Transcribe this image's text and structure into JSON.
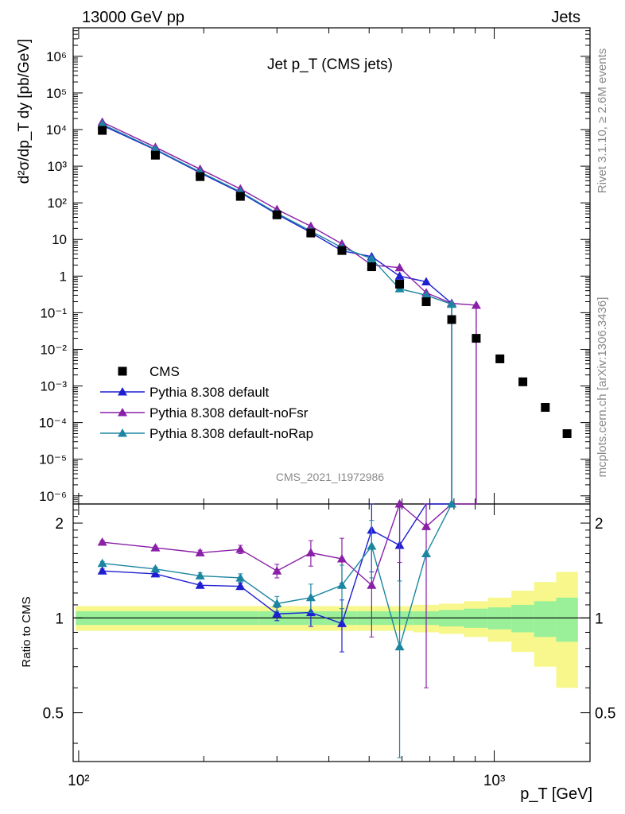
{
  "header": {
    "left": "13000 GeV pp",
    "right": "Jets",
    "side_top": "Rivet 3.1.10, ≥ 2.6M events",
    "side_bottom": "mcplots.cern.ch [arXiv:1306.3436]"
  },
  "chart_data": {
    "type": "scatter",
    "title": "Jet p_T (CMS jets)",
    "watermark": "CMS_2021_I1972986",
    "xlabel": "p_T [GeV]",
    "ylabel_top": "d²σ/dp_T dy [pb/GeV]",
    "ylabel_bottom": "Ratio to CMS",
    "x_scale": "log",
    "xlim": [
      97,
      1700
    ],
    "ylim_top": [
      6e-07,
      6000000.0
    ],
    "ylim_bottom": [
      0.35,
      2.3
    ],
    "x_ticks": [
      "10²",
      "10³"
    ],
    "legend_position": "bottom-left",
    "colors": {
      "data": "#000000",
      "default": "#1f1fd2",
      "noFsr": "#8a1fa8",
      "noRap": "#1a86a0",
      "band_inner": "#99f099",
      "band_outer": "#f7f78c"
    },
    "data": {
      "name": "CMS",
      "x": [
        114,
        153,
        196,
        245,
        300,
        362,
        430,
        507,
        592,
        686,
        790,
        905,
        1032,
        1172,
        1327,
        1497
      ],
      "y": [
        9500,
        2000,
        520,
        150,
        47,
        15,
        5.0,
        1.8,
        0.6,
        0.2,
        0.065,
        0.02,
        0.0055,
        0.0013,
        0.00026,
        5e-05
      ],
      "rel_err_inner": [
        0.05,
        0.05,
        0.05,
        0.05,
        0.05,
        0.05,
        0.05,
        0.05,
        0.05,
        0.05,
        0.06,
        0.07,
        0.08,
        0.1,
        0.13,
        0.16
      ],
      "rel_err_outer": [
        0.09,
        0.09,
        0.09,
        0.09,
        0.09,
        0.09,
        0.09,
        0.09,
        0.09,
        0.1,
        0.11,
        0.13,
        0.16,
        0.22,
        0.3,
        0.4
      ]
    },
    "series": [
      {
        "name": "Pythia 8.308 default",
        "x": [
          114,
          153,
          196,
          245,
          300,
          362,
          430,
          507,
          592,
          686,
          790
        ],
        "y": [
          13000,
          2800,
          660,
          190,
          49,
          15.5,
          4.9,
          3.4,
          1.0,
          0.7,
          0.18
        ],
        "ratio": [
          1.41,
          1.38,
          1.27,
          1.26,
          1.03,
          1.04,
          0.96,
          1.9,
          1.7,
          3.0,
          3.0
        ],
        "ratio_err": [
          0.02,
          0.02,
          0.02,
          0.03,
          0.05,
          0.1,
          0.18,
          0.5,
          0.7,
          null,
          null
        ]
      },
      {
        "name": "Pythia 8.308 default-noFsr",
        "x": [
          114,
          153,
          196,
          245,
          300,
          362,
          430,
          507,
          592,
          686,
          790,
          905
        ],
        "y": [
          16000,
          3300,
          830,
          240,
          66,
          23,
          7.6,
          2.0,
          1.7,
          0.35,
          0.18,
          0.16
        ],
        "ratio": [
          1.74,
          1.67,
          1.61,
          1.65,
          1.41,
          1.61,
          1.54,
          1.27,
          2.3,
          1.95,
          2.6,
          3.0
        ],
        "ratio_err": [
          0.02,
          0.02,
          0.03,
          0.05,
          0.07,
          0.15,
          0.25,
          0.4,
          0.8,
          1.35,
          null,
          null
        ]
      },
      {
        "name": "Pythia 8.308 default-noRap",
        "x": [
          114,
          153,
          196,
          245,
          300,
          362,
          430,
          507,
          592,
          686,
          790
        ],
        "y": [
          14000,
          2900,
          700,
          200,
          52,
          17,
          6.0,
          3.0,
          0.45,
          0.3,
          0.17
        ],
        "ratio": [
          1.49,
          1.43,
          1.36,
          1.34,
          1.11,
          1.16,
          1.27,
          1.69,
          0.81,
          1.6,
          2.3
        ],
        "ratio_err": [
          0.02,
          0.02,
          0.03,
          0.04,
          0.06,
          0.12,
          0.2,
          0.35,
          0.5,
          null,
          null
        ]
      }
    ]
  }
}
